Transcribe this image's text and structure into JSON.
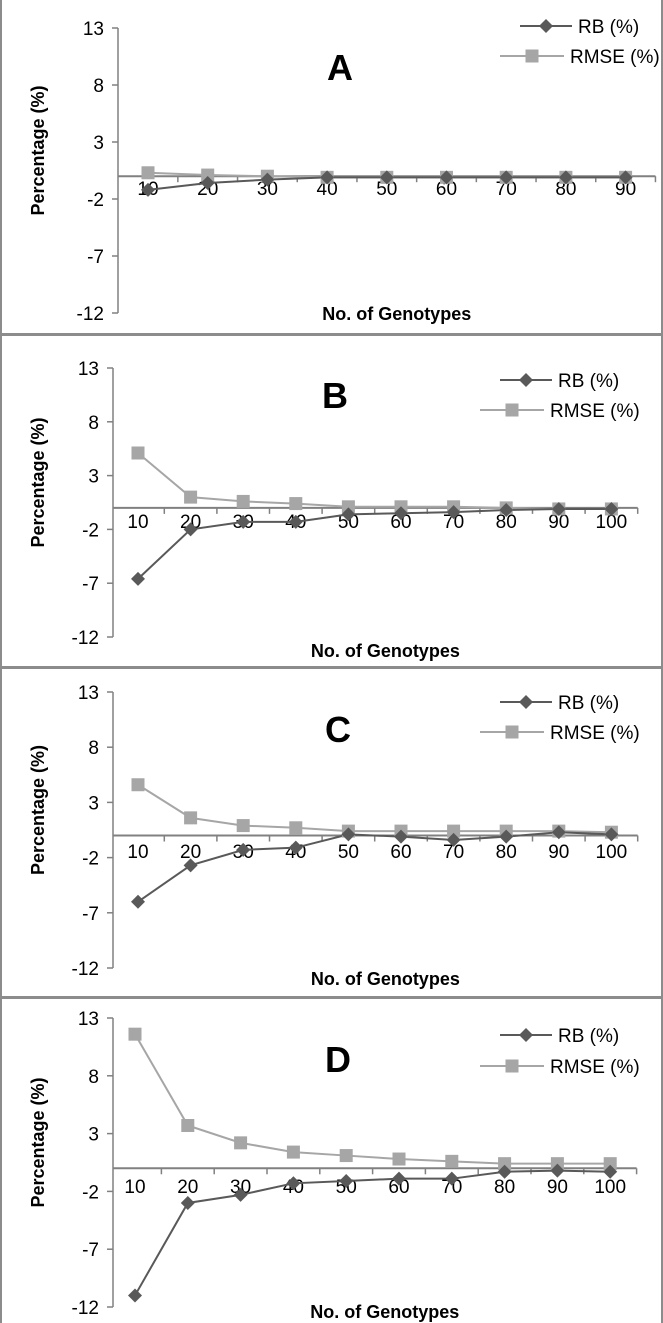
{
  "chart_data": [
    {
      "type": "line",
      "panel_label": "A",
      "categories": [
        "10",
        "20",
        "30",
        "40",
        "50",
        "60",
        "70",
        "80",
        "90"
      ],
      "series": [
        {
          "name": "RB (%)",
          "values": [
            -1.2,
            -0.6,
            -0.3,
            -0.1,
            -0.1,
            -0.1,
            -0.1,
            -0.1,
            -0.1
          ],
          "color": "#595959",
          "marker": "diamond"
        },
        {
          "name": "RMSE (%)",
          "values": [
            0.3,
            0.1,
            0.0,
            -0.1,
            -0.1,
            -0.1,
            -0.1,
            -0.1,
            -0.1
          ],
          "color": "#a6a6a6",
          "marker": "square"
        }
      ],
      "xlabel": "No. of Genotypes",
      "ylabel": "Percentage (%)",
      "ylim": [
        -12,
        13
      ],
      "yticks": [
        "13",
        "8",
        "3",
        "-2",
        "-7",
        "-12"
      ],
      "grid": false,
      "legend": "top-right"
    },
    {
      "type": "line",
      "panel_label": "B",
      "categories": [
        "10",
        "20",
        "30",
        "40",
        "50",
        "60",
        "70",
        "80",
        "90",
        "100"
      ],
      "series": [
        {
          "name": "RB (%)",
          "values": [
            -6.6,
            -2.0,
            -1.3,
            -1.3,
            -0.6,
            -0.5,
            -0.4,
            -0.2,
            -0.1,
            -0.1
          ],
          "color": "#595959",
          "marker": "diamond"
        },
        {
          "name": "RMSE (%)",
          "values": [
            5.1,
            1.0,
            0.6,
            0.4,
            0.1,
            0.1,
            0.1,
            0.0,
            -0.1,
            -0.1
          ],
          "color": "#a6a6a6",
          "marker": "square"
        }
      ],
      "xlabel": "No. of Genotypes",
      "ylabel": "Percentage (%)",
      "ylim": [
        -12,
        13
      ],
      "yticks": [
        "13",
        "8",
        "3",
        "-2",
        "-7",
        "-12"
      ],
      "grid": false,
      "legend": "top-right"
    },
    {
      "type": "line",
      "panel_label": "C",
      "categories": [
        "10",
        "20",
        "30",
        "40",
        "50",
        "60",
        "70",
        "80",
        "90",
        "100"
      ],
      "series": [
        {
          "name": "RB (%)",
          "values": [
            -6.0,
            -2.7,
            -1.3,
            -1.1,
            0.1,
            -0.1,
            -0.4,
            -0.1,
            0.3,
            0.1
          ],
          "color": "#595959",
          "marker": "diamond"
        },
        {
          "name": "RMSE (%)",
          "values": [
            4.6,
            1.6,
            0.9,
            0.7,
            0.4,
            0.4,
            0.4,
            0.4,
            0.4,
            0.3
          ],
          "color": "#a6a6a6",
          "marker": "square"
        }
      ],
      "xlabel": "No. of Genotypes",
      "ylabel": "Percentage (%)",
      "ylim": [
        -12,
        13
      ],
      "yticks": [
        "13",
        "8",
        "3",
        "-2",
        "-7",
        "-12"
      ],
      "grid": false,
      "legend": "top-right"
    },
    {
      "type": "line",
      "panel_label": "D",
      "categories": [
        "10",
        "20",
        "30",
        "40",
        "50",
        "60",
        "70",
        "80",
        "90",
        "100"
      ],
      "series": [
        {
          "name": "RB (%)",
          "values": [
            -11.0,
            -3.0,
            -2.3,
            -1.3,
            -1.1,
            -0.9,
            -0.9,
            -0.3,
            -0.2,
            -0.3
          ],
          "color": "#595959",
          "marker": "diamond"
        },
        {
          "name": "RMSE (%)",
          "values": [
            11.6,
            3.7,
            2.2,
            1.4,
            1.1,
            0.8,
            0.6,
            0.4,
            0.4,
            0.4
          ],
          "color": "#a6a6a6",
          "marker": "square"
        }
      ],
      "xlabel": "No. of Genotypes",
      "ylabel": "Percentage (%)",
      "ylim": [
        -12,
        13
      ],
      "yticks": [
        "13",
        "8",
        "3",
        "-2",
        "-7",
        "-12"
      ],
      "grid": false,
      "legend": "top-right"
    }
  ]
}
